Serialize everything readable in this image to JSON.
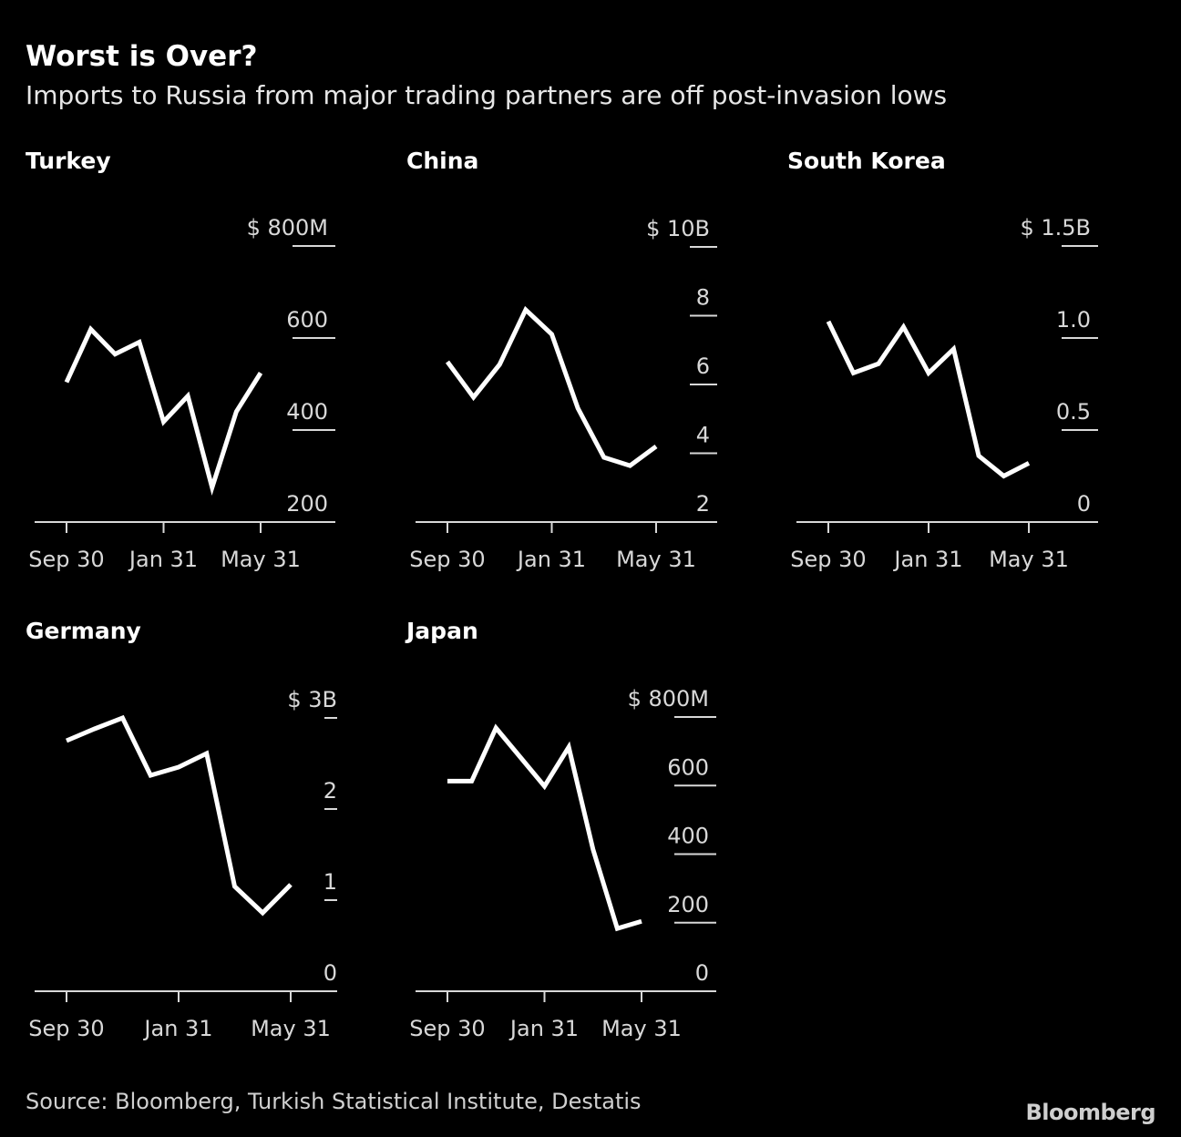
{
  "title": "Worst is Over?",
  "subtitle": "Imports to Russia from major trading partners are off post-invasion lows",
  "source": "Source: Bloomberg, Turkish Statistical Institute, Destatis",
  "logo": "Bloomberg",
  "colors": {
    "background": "#000000",
    "line": "#ffffff",
    "text": "#d8d8d8"
  },
  "chart_data": [
    {
      "type": "line",
      "title": "Turkey",
      "unit": "USD millions",
      "x": [
        "Sep 30",
        "Oct 31",
        "Nov 30",
        "Dec 31",
        "Jan 31",
        "Feb 28",
        "Mar 31",
        "Apr 30",
        "May 31"
      ],
      "xtick_labels": [
        "Sep 30",
        "Jan 31",
        "May 31"
      ],
      "values": [
        504,
        619,
        565,
        591,
        418,
        474,
        275,
        440,
        524
      ],
      "ylim": [
        200,
        800
      ],
      "yticks": [
        200,
        400,
        600,
        800
      ],
      "ytick_labels": [
        "200",
        "400",
        "600",
        "$ 800M"
      ]
    },
    {
      "type": "line",
      "title": "China",
      "unit": "USD billions",
      "x": [
        "Sep 30",
        "Oct 31",
        "Nov 30",
        "Dec 31",
        "Jan 31",
        "Feb 28",
        "Mar 31",
        "Apr 30",
        "May 31"
      ],
      "xtick_labels": [
        "Sep 30",
        "Jan 31",
        "May 31"
      ],
      "values": [
        6.66,
        5.63,
        6.58,
        8.17,
        7.46,
        5.31,
        3.88,
        3.64,
        4.2
      ],
      "ylim": [
        2,
        10
      ],
      "yticks": [
        2,
        4,
        6,
        8,
        10
      ],
      "ytick_labels": [
        "2",
        "4",
        "6",
        "8",
        "$ 10B"
      ]
    },
    {
      "type": "line",
      "title": "South Korea",
      "unit": "USD billions",
      "x": [
        "Sep 30",
        "Oct 31",
        "Nov 30",
        "Dec 31",
        "Jan 31",
        "Feb 28",
        "Mar 31",
        "Apr 30",
        "May 31"
      ],
      "xtick_labels": [
        "Sep 30",
        "Jan 31",
        "May 31"
      ],
      "values": [
        1.09,
        0.81,
        0.86,
        1.06,
        0.81,
        0.94,
        0.36,
        0.25,
        0.32
      ],
      "ylim": [
        0,
        1.5
      ],
      "yticks": [
        0,
        0.5,
        1.0,
        1.5
      ],
      "ytick_labels": [
        "0",
        "0.5",
        "1.0",
        "$ 1.5B"
      ]
    },
    {
      "type": "line",
      "title": "Germany",
      "unit": "USD billions",
      "x": [
        "Sep 30",
        "Oct 31",
        "Nov 30",
        "Dec 31",
        "Jan 31",
        "Feb 28",
        "Mar 31",
        "Apr 30",
        "May 31"
      ],
      "xtick_labels": [
        "Sep 30",
        "Jan 31",
        "May 31"
      ],
      "values": [
        2.75,
        2.88,
        3.0,
        2.37,
        2.46,
        2.61,
        1.15,
        0.86,
        1.17
      ],
      "ylim": [
        0,
        3
      ],
      "yticks": [
        0,
        1,
        2,
        3
      ],
      "ytick_labels": [
        "0",
        "1",
        "2",
        "$ 3B"
      ]
    },
    {
      "type": "line",
      "title": "Japan",
      "unit": "USD millions",
      "x": [
        "Sep 30",
        "Oct 31",
        "Nov 30",
        "Dec 31",
        "Jan 31",
        "Feb 28",
        "Mar 31",
        "Apr 30",
        "May 31"
      ],
      "xtick_labels": [
        "Sep 30",
        "Jan 31",
        "May 31"
      ],
      "values": [
        613,
        613,
        768,
        683,
        598,
        712,
        414,
        183,
        204
      ],
      "ylim": [
        0,
        800
      ],
      "yticks": [
        0,
        200,
        400,
        600,
        800
      ],
      "ytick_labels": [
        "0",
        "200",
        "400",
        "600",
        "$ 800M"
      ]
    }
  ]
}
